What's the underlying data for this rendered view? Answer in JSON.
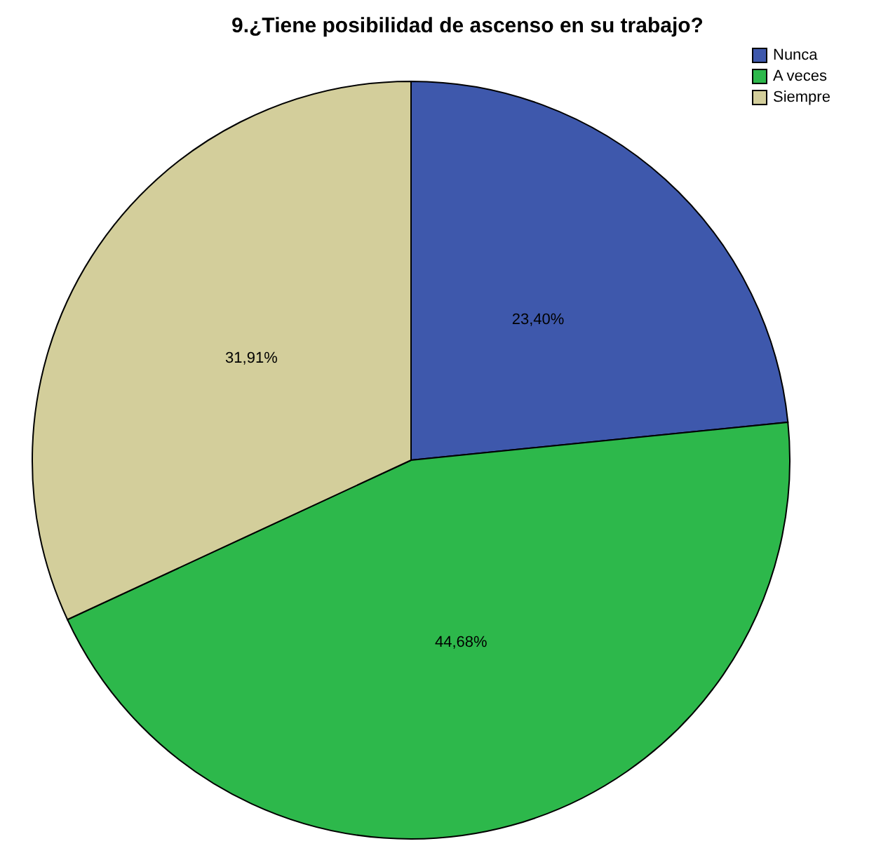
{
  "chart_data": {
    "type": "pie",
    "title": "9.¿Tiene posibilidad de ascenso en su trabajo?",
    "categories": [
      "Nunca",
      "A veces",
      "Siempre"
    ],
    "values": [
      23.4,
      44.68,
      31.91
    ],
    "colors": [
      "#3e58ac",
      "#2db84b",
      "#d3ce9b"
    ],
    "value_labels": [
      "23,40%",
      "44,68%",
      "31,91%"
    ],
    "legend": "top right"
  }
}
